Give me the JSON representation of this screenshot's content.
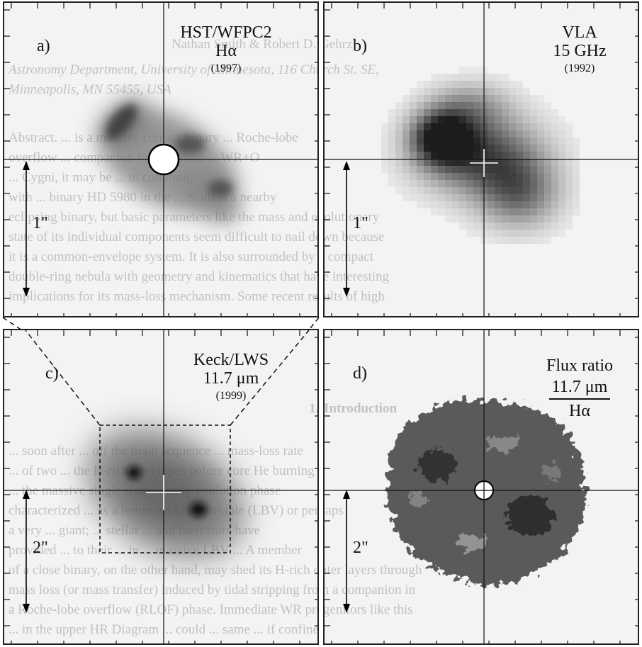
{
  "panels": {
    "a": {
      "label": "a)",
      "title_line1": "HST/WFPC2",
      "title_line2": "Hα",
      "year": "(1997)",
      "scale": "1\""
    },
    "b": {
      "label": "b)",
      "title_line1": "VLA",
      "title_line2": "15 GHz",
      "year": "(1992)",
      "scale": "1\""
    },
    "c": {
      "label": "c)",
      "title_line1": "Keck/LWS",
      "title_line2": "11.7 μm",
      "year": "(1999)",
      "scale": "2\""
    },
    "d": {
      "label": "d)",
      "title_line1": "Flux ratio",
      "numerator": "11.7 μm",
      "denominator": "Hα",
      "scale": "2\""
    }
  },
  "bleed_through_text": {
    "line1": "Nathan Smith & Robert D. Gehrz",
    "line2": "Astronomy Department, University of Minnesota, 116 Church St. SE,",
    "line3": "Minneapolis, MN 55455, USA",
    "abstract": [
      "Abstract. ... is a massive contact binary ... Roche-lobe",
      "overflow ... companion in formation ... WR+O",
      "... Cygni, it may be ... in common",
      "with ... binary HD 5980 in the ... Scuti is a nearby",
      "eclipsing binary, but basic parameters like the mass and evolutionary",
      "state of its individual components seem difficult to nail down because",
      "it is a common-envelope system. It is also surrounded by a compact",
      "double-ring nebula with geometry and kinematics that have interesting",
      "implications for its mass-loss mechanism. Some recent results of high"
    ],
    "intro_heading": "1. Introduction",
    "intro": [
      "... soon after ... off the main sequence ... mass-loss rate",
      "... of two ... the H-rich envelopes before core He burning",
      "... the massive single stars ... early evolution phase",
      "characterized ... as a luminous blue variable (LBV) or perhaps",
      "a very ... giant; ... stellar ... and their stars have",
      "provided ... to their ... in ... massive LBV ... A member",
      "of a close binary, on the other hand, may shed its H-rich outer layers through",
      "mass loss (or mass transfer) induced by tidal stripping from a companion in",
      "a Roche-lobe overflow (RLOF) phase. Immediate WR progenitors like this",
      "... in the upper HR Diagram ... could ... same ... if confined"
    ]
  }
}
